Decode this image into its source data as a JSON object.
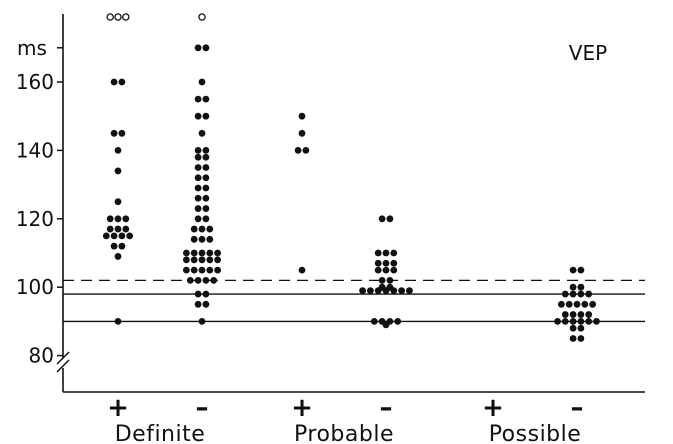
{
  "chart_data": {
    "type": "scatter",
    "title": "VEP",
    "ylabel": "ms",
    "ylim": [
      74,
      176
    ],
    "yticks": [
      80,
      100,
      120,
      140,
      160
    ],
    "axis_break": true,
    "reference_lines": [
      {
        "y": 102,
        "style": "dashed"
      },
      {
        "y": 98,
        "style": "solid"
      },
      {
        "y": 90,
        "style": "solid"
      }
    ],
    "groups": [
      {
        "label": "Definite",
        "sign": "+",
        "sign_group": "Definite"
      },
      {
        "label": "",
        "sign": "–",
        "sign_group": "Definite"
      },
      {
        "label": "Probable",
        "sign": "+",
        "sign_group": "Probable"
      },
      {
        "label": "",
        "sign": "–",
        "sign_group": "Probable"
      },
      {
        "label": "Possible",
        "sign": "+",
        "sign_group": "Possible"
      },
      {
        "label": "",
        "sign": "–",
        "sign_group": "Possible"
      }
    ],
    "category_labels": [
      "Definite",
      "Probable",
      "Possible"
    ],
    "series": [
      {
        "group": 0,
        "rows": [
          {
            "y": 90,
            "n": 1
          },
          {
            "y": 109,
            "n": 1
          },
          {
            "y": 112,
            "n": 2
          },
          {
            "y": 115,
            "n": 4
          },
          {
            "y": 117,
            "n": 3
          },
          {
            "y": 120,
            "n": 3
          },
          {
            "y": 125,
            "n": 1
          },
          {
            "y": 134,
            "n": 1
          },
          {
            "y": 140,
            "n": 1
          },
          {
            "y": 145,
            "n": 2
          },
          {
            "y": 160,
            "n": 2
          }
        ],
        "above_scale": 3
      },
      {
        "group": 1,
        "rows": [
          {
            "y": 90,
            "n": 1
          },
          {
            "y": 95,
            "n": 2
          },
          {
            "y": 98,
            "n": 2
          },
          {
            "y": 102,
            "n": 4
          },
          {
            "y": 105,
            "n": 5
          },
          {
            "y": 108,
            "n": 5
          },
          {
            "y": 110,
            "n": 5
          },
          {
            "y": 114,
            "n": 3
          },
          {
            "y": 117,
            "n": 3
          },
          {
            "y": 120,
            "n": 2
          },
          {
            "y": 123,
            "n": 2
          },
          {
            "y": 126,
            "n": 2
          },
          {
            "y": 129,
            "n": 2
          },
          {
            "y": 132,
            "n": 2
          },
          {
            "y": 135,
            "n": 2
          },
          {
            "y": 138,
            "n": 2
          },
          {
            "y": 140,
            "n": 2
          },
          {
            "y": 145,
            "n": 1
          },
          {
            "y": 150,
            "n": 2
          },
          {
            "y": 155,
            "n": 2
          },
          {
            "y": 160,
            "n": 1
          },
          {
            "y": 170,
            "n": 2
          }
        ],
        "above_scale": 1
      },
      {
        "group": 2,
        "rows": [
          {
            "y": 105,
            "n": 1
          },
          {
            "y": 140,
            "n": 2
          },
          {
            "y": 145,
            "n": 1
          },
          {
            "y": 150,
            "n": 1
          }
        ],
        "above_scale": 0
      },
      {
        "group": 3,
        "rows": [
          {
            "y": 89,
            "n": 1
          },
          {
            "y": 90,
            "n": 4
          },
          {
            "y": 99,
            "n": 7
          },
          {
            "y": 100,
            "n": 2
          },
          {
            "y": 102,
            "n": 2
          },
          {
            "y": 105,
            "n": 3
          },
          {
            "y": 107,
            "n": 3
          },
          {
            "y": 110,
            "n": 3
          },
          {
            "y": 120,
            "n": 2
          }
        ],
        "above_scale": 0
      },
      {
        "group": 4,
        "rows": [],
        "above_scale": 0
      },
      {
        "group": 5,
        "rows": [
          {
            "y": 85,
            "n": 2
          },
          {
            "y": 88,
            "n": 2
          },
          {
            "y": 90,
            "n": 6
          },
          {
            "y": 92,
            "n": 4
          },
          {
            "y": 95,
            "n": 5
          },
          {
            "y": 98,
            "n": 4
          },
          {
            "y": 100,
            "n": 2
          },
          {
            "y": 105,
            "n": 2
          }
        ],
        "above_scale": 0
      }
    ]
  },
  "colors": {
    "ink": "#111111",
    "background": "#ffffff"
  }
}
